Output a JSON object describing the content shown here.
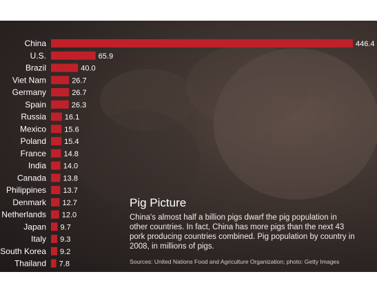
{
  "chart_data": {
    "type": "bar",
    "orientation": "horizontal",
    "categories": [
      "China",
      "U.S.",
      "Brazil",
      "Viet Nam",
      "Germany",
      "Spain",
      "Russia",
      "Mexico",
      "Poland",
      "France",
      "India",
      "Canada",
      "Philippines",
      "Denmark",
      "Netherlands",
      "Japan",
      "Italy",
      "South Korea",
      "Thailand"
    ],
    "values": [
      446.4,
      65.9,
      40.0,
      26.7,
      26.7,
      26.3,
      16.1,
      15.6,
      15.4,
      14.8,
      14.0,
      13.8,
      13.7,
      12.7,
      12.0,
      9.7,
      9.3,
      9.2,
      7.8
    ],
    "value_labels": [
      "446.4",
      "65.9",
      "40.0",
      "26.7",
      "26.7",
      "26.3",
      "16.1",
      "15.6",
      "15.4",
      "14.8",
      "14.0",
      "13.8",
      "13.7",
      "12.7",
      "12.0",
      "9.7",
      "9.3",
      "9.2",
      "7.8"
    ],
    "xlim": [
      0,
      446.4
    ],
    "grid": false,
    "bar_color": "#c0202a",
    "title": "Pig Picture"
  },
  "caption": {
    "title": "Pig Picture",
    "body": "China's almost half a billion pigs dwarf the pig population in other countries. In fact, China has more pigs than the next 43 pork producing countries combined. Pig population by country in 2008, in millions of pigs.",
    "source": "Sources: United Nations Food and Agriculture Organization; photo: Getty Images"
  },
  "colors": {
    "background_dark": "#2b2422",
    "bar": "#c0202a",
    "text": "#ffffff"
  }
}
